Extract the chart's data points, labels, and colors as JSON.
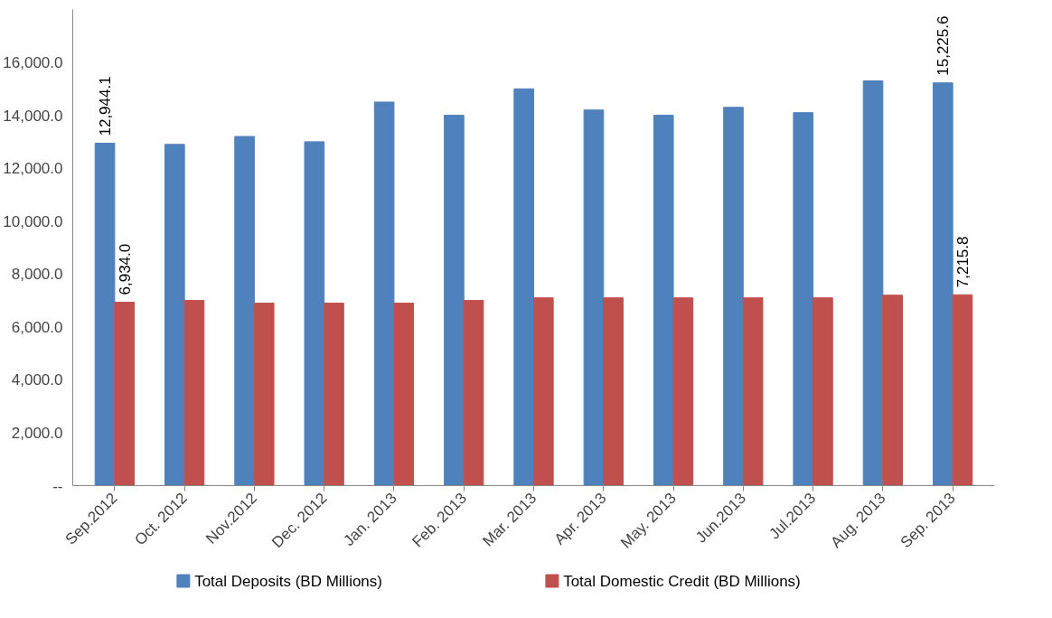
{
  "chart_data": {
    "type": "bar",
    "categories": [
      "Sep.2012",
      "Oct. 2012",
      "Nov.2012",
      "Dec. 2012",
      "Jan. 2013",
      "Feb. 2013",
      "Mar. 2013",
      "Apr. 2013",
      "May. 2013",
      "Jun.2013",
      "Jul.2013",
      "Aug. 2013",
      "Sep. 2013"
    ],
    "series": [
      {
        "name": "Total Deposits (BD Millions)",
        "color": "#4f81bd",
        "values": [
          12944.1,
          12900,
          13200,
          13000,
          14500,
          14000,
          15000,
          14200,
          14000,
          14300,
          14100,
          15300,
          15225.6
        ],
        "value_labels": [
          "12,944.1",
          null,
          null,
          null,
          null,
          null,
          null,
          null,
          null,
          null,
          null,
          null,
          "15,225.6"
        ]
      },
      {
        "name": "Total Domestic Credit (BD Millions)",
        "color": "#c0504d",
        "values": [
          6934.0,
          7000,
          6900,
          6900,
          6900,
          7000,
          7100,
          7100,
          7100,
          7100,
          7100,
          7200,
          7215.8
        ],
        "value_labels": [
          "6,934.0",
          null,
          null,
          null,
          null,
          null,
          null,
          null,
          null,
          null,
          null,
          null,
          "7,215.8"
        ]
      }
    ],
    "ylim": [
      0,
      18000
    ],
    "yticks": [
      {
        "value": 0,
        "label": "--"
      },
      {
        "value": 2000,
        "label": "2,000.0"
      },
      {
        "value": 4000,
        "label": "4,000.0"
      },
      {
        "value": 6000,
        "label": "6,000.0"
      },
      {
        "value": 8000,
        "label": "8,000.0"
      },
      {
        "value": 10000,
        "label": "10,000.0"
      },
      {
        "value": 12000,
        "label": "12,000.0"
      },
      {
        "value": 14000,
        "label": "14,000.0"
      },
      {
        "value": 16000,
        "label": "16,000.0"
      }
    ],
    "grid": false,
    "legend": "bottom"
  }
}
